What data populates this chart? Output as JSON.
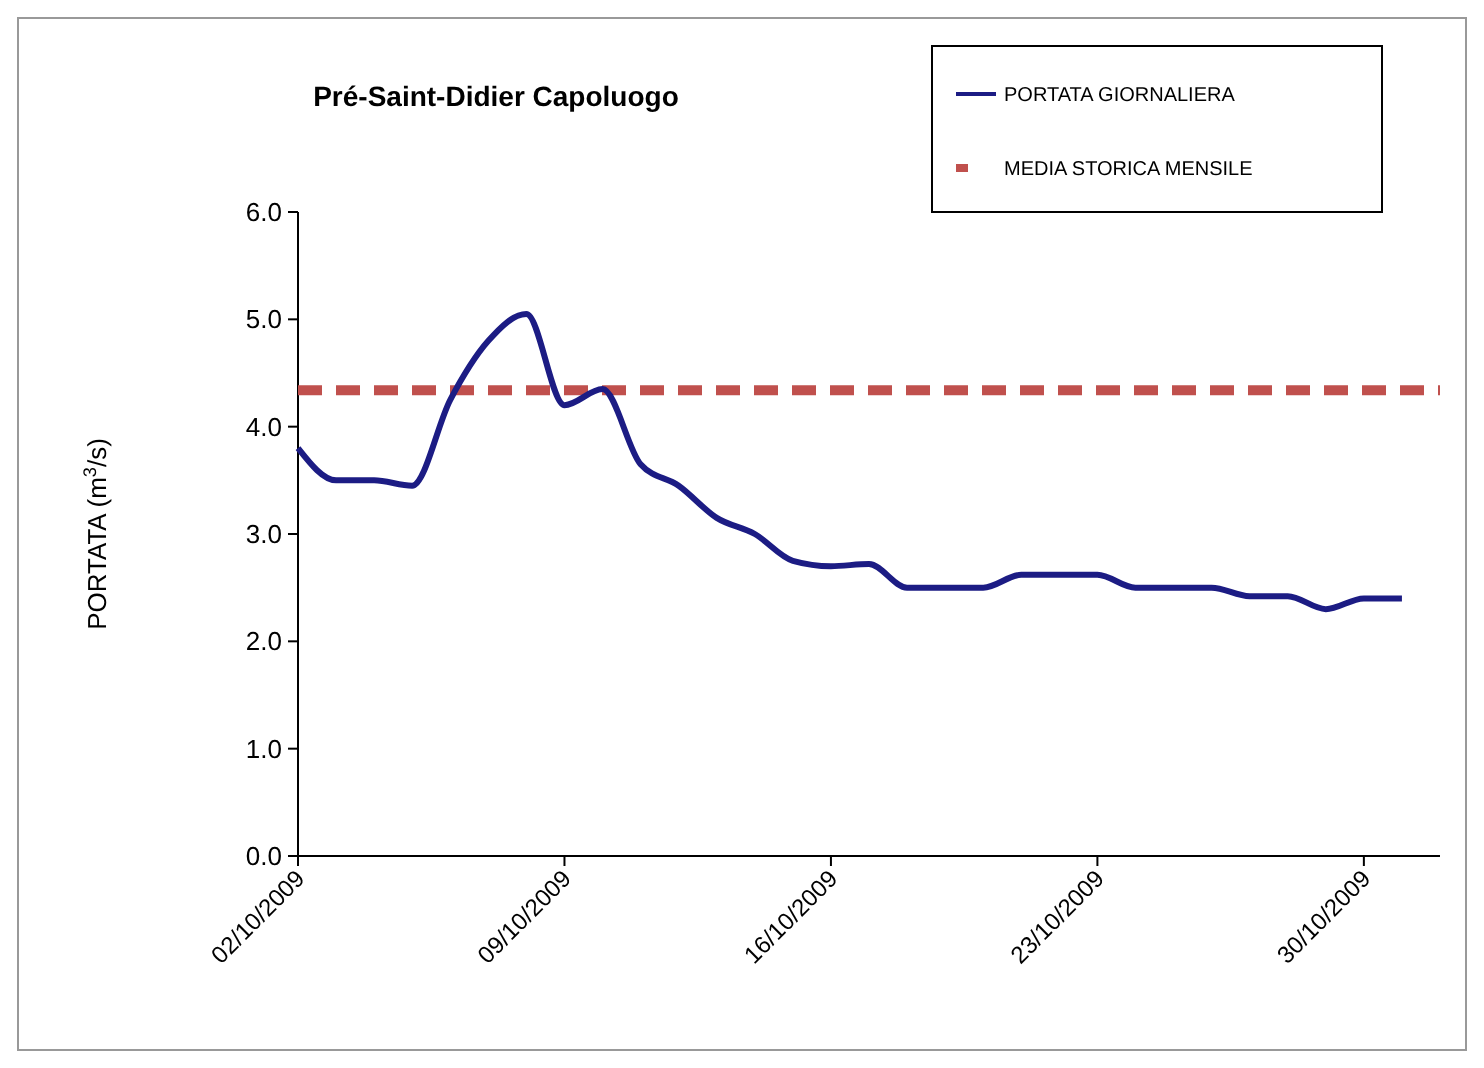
{
  "chart_data": {
    "type": "line",
    "title": "Pré-Saint-Didier  Capoluogo",
    "ylabel": "PORTATA (m$^{3}$/s)",
    "x": [
      "2009-10-02",
      "2009-10-03",
      "2009-10-04",
      "2009-10-05",
      "2009-10-06",
      "2009-10-07",
      "2009-10-08",
      "2009-10-09",
      "2009-10-10",
      "2009-10-11",
      "2009-10-12",
      "2009-10-13",
      "2009-10-14",
      "2009-10-15",
      "2009-10-16",
      "2009-10-17",
      "2009-10-18",
      "2009-10-19",
      "2009-10-20",
      "2009-10-21",
      "2009-10-22",
      "2009-10-23",
      "2009-10-24",
      "2009-10-25",
      "2009-10-26",
      "2009-10-27",
      "2009-10-28",
      "2009-10-29",
      "2009-10-30",
      "2009-10-31"
    ],
    "series": [
      {
        "name": "PORTATA GIORNALIERA",
        "color": "#1c1c84",
        "values": [
          3.8,
          3.5,
          3.5,
          3.45,
          4.25,
          4.8,
          5.05,
          4.2,
          4.35,
          3.65,
          3.45,
          3.15,
          3.0,
          2.75,
          2.7,
          2.72,
          2.5,
          2.5,
          2.5,
          2.62,
          2.62,
          2.62,
          2.5,
          2.5,
          2.5,
          2.42,
          2.42,
          2.3,
          2.4,
          2.4
        ]
      }
    ],
    "ref_lines": [
      {
        "axis": "y",
        "value": 4.34,
        "label": "MEDIA STORICA MENSILE",
        "color": "#c0504d",
        "line_style": "dashed"
      }
    ],
    "xlim": [
      "2009-10-02",
      "2009-11-01"
    ],
    "xticks": [
      {
        "value": "2009-10-02",
        "label": "02/10/2009"
      },
      {
        "value": "2009-10-09",
        "label": "09/10/2009"
      },
      {
        "value": "2009-10-16",
        "label": "16/10/2009"
      },
      {
        "value": "2009-10-23",
        "label": "23/10/2009"
      },
      {
        "value": "2009-10-30",
        "label": "30/10/2009"
      }
    ],
    "ylim": [
      0,
      6
    ],
    "yticks": [
      {
        "value": 0,
        "label": "0.0"
      },
      {
        "value": 1,
        "label": "1.0"
      },
      {
        "value": 2,
        "label": "2.0"
      },
      {
        "value": 3,
        "label": "3.0"
      },
      {
        "value": 4,
        "label": "4.0"
      },
      {
        "value": 5,
        "label": "5.0"
      },
      {
        "value": 6,
        "label": "6.0"
      }
    ],
    "legend": "top right",
    "line_style": "solid",
    "marker": "none",
    "grid": false
  }
}
